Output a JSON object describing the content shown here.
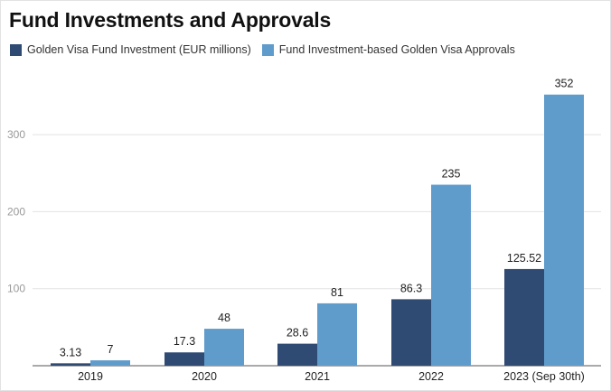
{
  "chart_data": {
    "type": "bar",
    "title": "Fund Investments and Approvals",
    "xlabel": "",
    "ylabel": "",
    "categories": [
      "2019",
      "2020",
      "2021",
      "2022",
      "2023 (Sep 30th)"
    ],
    "series": [
      {
        "name": "Golden Visa Fund Investment (EUR millions)",
        "color": "#2f4b74",
        "values": [
          3.13,
          17.3,
          28.6,
          86.3,
          125.52
        ],
        "labels": [
          "3.13",
          "17.3",
          "28.6",
          "86.3",
          "125.52"
        ]
      },
      {
        "name": "Fund Investment-based Golden Visa Approvals",
        "color": "#5f9ccc",
        "values": [
          7,
          48,
          81,
          235,
          352
        ],
        "labels": [
          "7",
          "48",
          "81",
          "235",
          "352"
        ]
      }
    ],
    "ylim": [
      0,
      375
    ],
    "yticks": [
      100,
      200,
      300
    ],
    "ytick_labels": [
      "100",
      "200",
      "300"
    ],
    "grid": true,
    "legend_position": "top-left"
  }
}
